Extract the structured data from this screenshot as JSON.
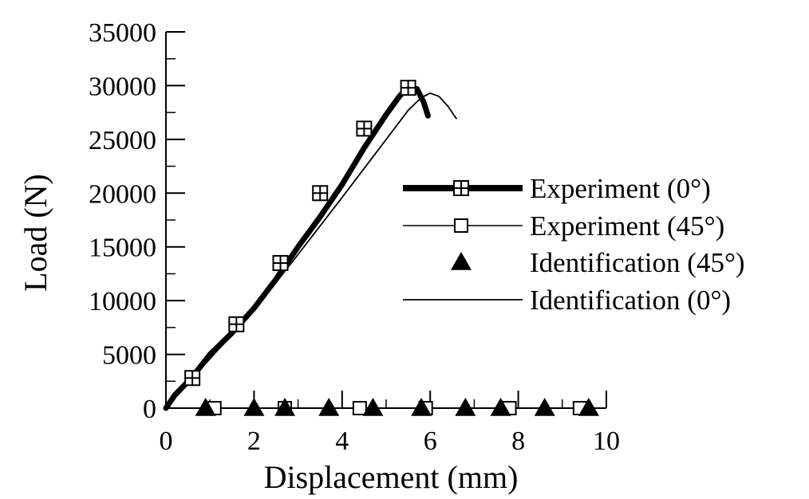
{
  "chart_data": {
    "type": "line",
    "xlabel": "Displacement (mm)",
    "ylabel": "Load (N)",
    "xlim": [
      0,
      10
    ],
    "ylim": [
      0,
      35000
    ],
    "xticks": [
      0,
      2,
      4,
      6,
      8,
      10
    ],
    "yticks": [
      0,
      5000,
      10000,
      15000,
      20000,
      25000,
      30000,
      35000
    ],
    "grid": false,
    "legend": "right",
    "series": [
      {
        "name": "Experiment (0°)",
        "style": "thick-line-square-plus-markers",
        "x": [
          0.0,
          0.2,
          0.6,
          1.0,
          1.5,
          2.0,
          2.5,
          3.0,
          3.5,
          4.0,
          4.5,
          5.0,
          5.3,
          5.5,
          5.7,
          5.85,
          5.95
        ],
        "y": [
          0,
          1200,
          2900,
          5000,
          7000,
          9300,
          12000,
          15000,
          17800,
          20800,
          24200,
          27300,
          29000,
          29900,
          29700,
          28500,
          27200
        ],
        "marker_x": [
          0.6,
          1.6,
          2.6,
          3.5,
          4.5,
          5.5
        ],
        "marker_y": [
          2800,
          7800,
          13500,
          20000,
          26000,
          29800
        ]
      },
      {
        "name": "Experiment (45°)",
        "style": "thin-line-open-square-markers",
        "x": [
          0.2,
          1.0,
          2.0,
          3.0,
          4.0,
          5.0,
          6.0,
          7.0,
          8.0,
          9.0,
          9.8
        ],
        "y": [
          0,
          0,
          0,
          0,
          0,
          0,
          0,
          0,
          0,
          0,
          0
        ],
        "marker_x": [
          1.1,
          2.7,
          4.4,
          5.9,
          7.8,
          9.4
        ],
        "marker_y": [
          0,
          0,
          0,
          0,
          0,
          0
        ]
      },
      {
        "name": "Identification (45°)",
        "style": "filled-triangle-markers",
        "x": [
          0.9,
          2.0,
          2.7,
          3.7,
          4.7,
          5.8,
          6.8,
          7.6,
          8.6,
          9.6
        ],
        "y": [
          0,
          0,
          0,
          0,
          0,
          0,
          0,
          0,
          0,
          0
        ]
      },
      {
        "name": "Identification (0°)",
        "style": "thin-line",
        "x": [
          0.0,
          1.0,
          2.0,
          3.0,
          4.0,
          5.0,
          5.5,
          5.8,
          6.0,
          6.2,
          6.4,
          6.6
        ],
        "y": [
          0,
          4600,
          9100,
          14300,
          19600,
          25000,
          27700,
          28900,
          29300,
          29000,
          28100,
          26900
        ]
      }
    ]
  }
}
